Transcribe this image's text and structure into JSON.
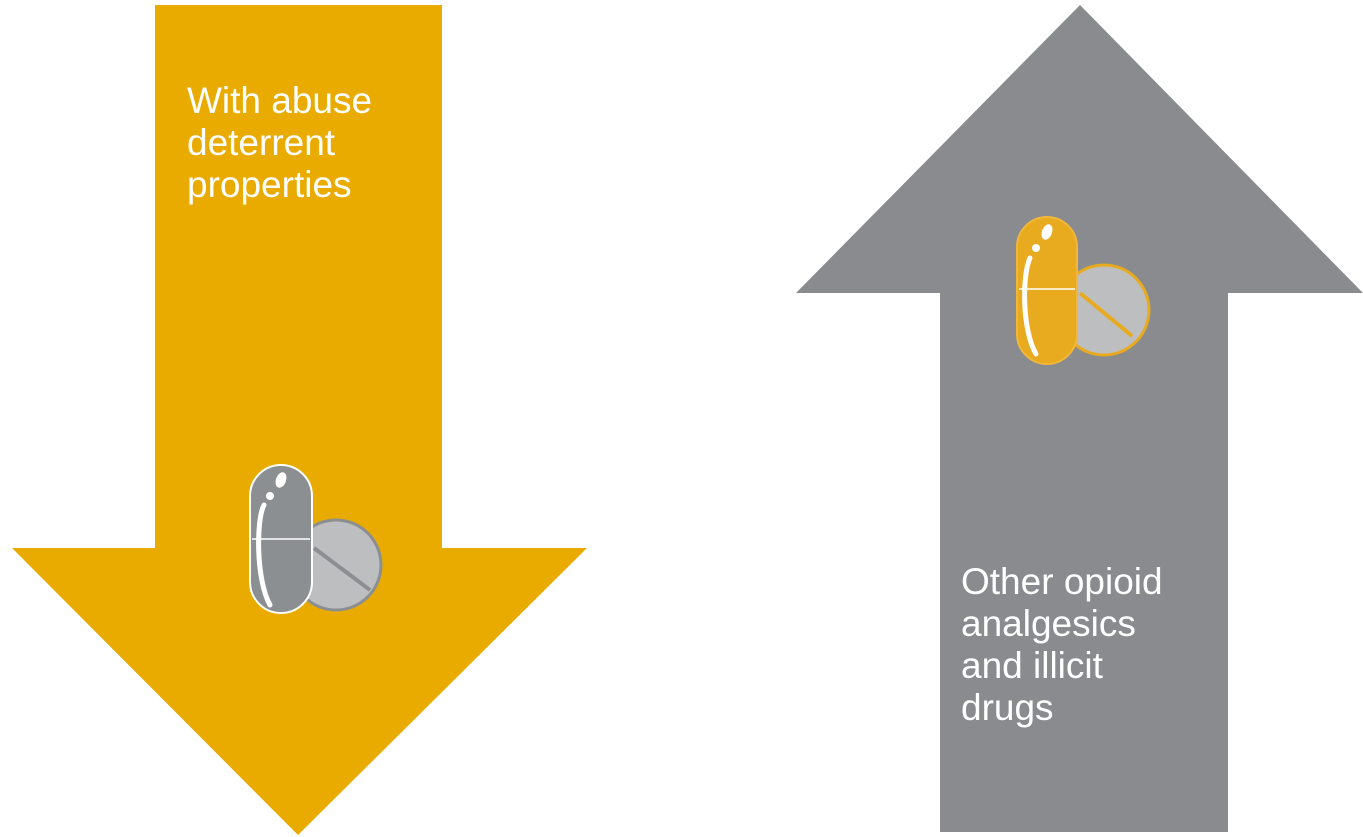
{
  "arrows": {
    "down": {
      "label": "With abuse\ndeterrent\nproperties",
      "color": "#E9AB00",
      "icon": "pill-capsule-tablet-icon",
      "icon_colors": {
        "capsule": "#8C8F91",
        "capsule_outline": "#FFFFFF",
        "tablet": "#BDBEC0",
        "tablet_outline": "#8C8F91"
      }
    },
    "up": {
      "label": "Other opioid\nanalgesics\nand illicit\ndrugs",
      "color": "#898B8E",
      "icon": "pill-capsule-tablet-icon",
      "icon_colors": {
        "capsule": "#E8AA1E",
        "capsule_outline": "#F0B73A",
        "tablet": "#BDBEC0",
        "tablet_outline": "#E8AA1E"
      }
    }
  }
}
